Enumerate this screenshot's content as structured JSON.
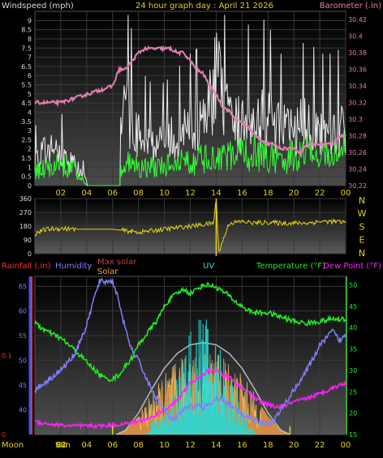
{
  "header": {
    "windspeed_label": "Windspeed (mph)",
    "title": "24 hour graph day : April 21 2026",
    "barometer_label": "Barometer (.in)"
  },
  "wind_panel": {
    "left_ticks": [
      "0",
      "0.5",
      "1",
      "1.5",
      "2",
      "2.5",
      "3",
      "3.5",
      "4",
      "4.5",
      "5",
      "5.5",
      "6",
      "6.5",
      "7",
      "7.5",
      "8",
      "8.5",
      "9"
    ],
    "right_ticks": [
      "30.22",
      "30.24",
      "30.26",
      "30.28",
      "30.3",
      "30.32",
      "30.34",
      "30.36",
      "30.38",
      "30.4",
      "30.42"
    ],
    "x_ticks": [
      "02",
      "04",
      "06",
      "08",
      "10",
      "12",
      "14",
      "16",
      "18",
      "20",
      "22",
      "00"
    ]
  },
  "direction_panel": {
    "left_ticks": [
      "360",
      "270",
      "180",
      "90",
      "0"
    ],
    "compass": [
      "N",
      "W",
      "S",
      "E",
      "N"
    ]
  },
  "bottom_panel": {
    "labels": {
      "rainfall": "Rainfall (.in)",
      "humidity": "Humidity",
      "max_solar": "Max solar",
      "solar": "Solar",
      "uv": "UV",
      "temperature": "Temperature (°F)",
      "dewpoint": "Dew Point (°F)"
    },
    "left_ticks": [
      "0",
      "0.1"
    ],
    "humidity_ticks": [
      "40",
      "45",
      "50",
      "55",
      "60",
      "65"
    ],
    "right_ticks": [
      "15",
      "20",
      "25",
      "30",
      "35",
      "40",
      "45",
      "50"
    ],
    "x_ticks": [
      "02",
      "04",
      "06",
      "08",
      "10",
      "12",
      "14",
      "16",
      "18",
      "20",
      "22",
      "00"
    ],
    "moon_label": "Moon",
    "moon_times": [
      "Sun",
      "00"
    ]
  },
  "colors": {
    "windspeed": "#e8e8e8",
    "gust": "#ffffff",
    "wind_avg": "#33ff33",
    "barometer": "#e080b0",
    "direction": "#e6d21a",
    "humidity": "#8080ff",
    "temperature": "#22ee22",
    "dewpoint": "#ff22ff",
    "uv": "#22dddd",
    "solar": "#ffa040",
    "max_solar": "#bbbbbb"
  },
  "chart_data": [
    {
      "type": "line",
      "x_range_hours": [
        0,
        24
      ],
      "ylim_left": [
        0,
        9.5
      ],
      "ylim_right": [
        30.22,
        30.43
      ],
      "series": [
        {
          "axis": "right",
          "x": [
            0.2,
            1,
            2,
            3,
            4,
            5,
            6,
            6.5,
            7,
            7.5,
            8,
            8.5,
            9,
            9.5,
            10,
            10.5,
            11,
            11.5,
            12,
            12.5,
            13,
            13.5,
            14,
            14.5,
            15,
            15.5,
            16,
            16.5,
            17,
            17.5,
            18,
            18.5,
            19,
            19.5,
            20,
            20.5,
            21,
            21.5,
            22,
            22.5,
            23,
            23.5,
            24
          ],
          "y": [
            30.32,
            30.32,
            30.32,
            30.325,
            30.33,
            30.335,
            30.34,
            30.36,
            30.36,
            30.37,
            30.38,
            30.385,
            30.385,
            30.385,
            30.385,
            30.385,
            30.38,
            30.38,
            30.37,
            30.36,
            30.355,
            30.34,
            30.33,
            30.315,
            30.31,
            30.3,
            30.295,
            30.29,
            30.28,
            30.275,
            30.27,
            30.27,
            30.265,
            30.265,
            30.265,
            30.26,
            30.27,
            30.27,
            30.27,
            30.27,
            30.27,
            30.28,
            30.28
          ]
        },
        {
          "x": [
            0,
            1,
            2,
            3,
            4,
            5,
            6,
            7,
            8,
            9,
            10,
            11,
            12,
            13,
            14,
            15,
            16,
            17,
            18,
            19,
            20,
            21,
            22,
            23,
            24
          ],
          "y": [
            1,
            1.3,
            1.5,
            1.2,
            0,
            0,
            0,
            1.6,
            1.5,
            1.3,
            1.5,
            1.6,
            1.8,
            1.9,
            1.8,
            2.1,
            2.2,
            2.4,
            2.1,
            2,
            2.1,
            2.5,
            2.2,
            2.2,
            2.6
          ]
        },
        {
          "x": [
            0,
            1,
            2,
            3,
            4,
            5,
            6,
            7,
            8,
            9,
            10,
            11,
            12,
            13,
            14,
            15,
            16,
            17,
            18,
            19,
            20,
            21,
            22,
            23,
            24
          ],
          "y": [
            2,
            3,
            2.5,
            1.8,
            0.5,
            0,
            0,
            6.5,
            4,
            3.5,
            3.5,
            4,
            4.5,
            4.8,
            9,
            5,
            5,
            6,
            5.5,
            4.5,
            4.5,
            5,
            4.5,
            4.5,
            4.8
          ]
        }
      ]
    },
    {
      "type": "line",
      "x_range_hours": [
        0,
        24
      ],
      "ylim": [
        0,
        360
      ],
      "series": [
        {
          "x": [
            0,
            0.5,
            1,
            2,
            3,
            4,
            5,
            6,
            7,
            8,
            9,
            10,
            11,
            12,
            13,
            13.8,
            14,
            14.2,
            15,
            16,
            17,
            18,
            19,
            20,
            21,
            22,
            23,
            24
          ],
          "y": [
            130,
            150,
            160,
            165,
            160,
            160,
            160,
            160,
            150,
            140,
            150,
            160,
            170,
            180,
            190,
            200,
            360,
            10,
            200,
            210,
            200,
            205,
            200,
            200,
            200,
            210,
            210,
            205
          ]
        }
      ]
    },
    {
      "type": "line",
      "x_range_hours": [
        0,
        24
      ],
      "ylim_left": [
        0,
        0.2
      ],
      "ylim_humidity": [
        35,
        67
      ],
      "ylim_right": [
        15,
        52
      ],
      "series": [
        {
          "axis": "humidity",
          "x": [
            0,
            1,
            2,
            3,
            4,
            4.5,
            5,
            5.5,
            6,
            6.5,
            7,
            7.5,
            8,
            8.5,
            9,
            9.5,
            10,
            10.5,
            11,
            11.5,
            12,
            12.5,
            13,
            13.5,
            14,
            14.5,
            15,
            15.5,
            16,
            16.5,
            17,
            17.5,
            18,
            18.5,
            19,
            19.5,
            20,
            21,
            22,
            23,
            23.5,
            24
          ],
          "y": [
            44,
            46,
            48,
            51,
            57,
            62,
            66,
            66,
            66,
            62,
            56,
            52,
            50,
            47,
            44,
            42,
            40,
            38,
            38.5,
            40,
            40.5,
            41,
            40.5,
            41,
            42,
            42,
            41,
            40,
            39,
            38.5,
            38,
            37.5,
            37,
            38,
            40,
            42,
            44,
            48,
            53,
            56,
            54,
            55
          ]
        },
        {
          "axis": "right",
          "x": [
            0,
            1,
            2,
            3,
            4,
            5,
            5.5,
            6,
            6.5,
            7,
            7.5,
            8,
            8.5,
            9,
            9.5,
            10,
            10.5,
            11,
            11.5,
            12,
            12.5,
            13,
            13.5,
            14,
            14.5,
            15,
            15.5,
            16,
            16.5,
            17,
            17.5,
            18,
            18.5,
            19,
            19.5,
            20,
            21,
            22,
            23,
            24
          ],
          "y": [
            41,
            39,
            37.5,
            35,
            32,
            29,
            28,
            28,
            29,
            31,
            33,
            36,
            38,
            40,
            42,
            45,
            47,
            48,
            49,
            48,
            49,
            50,
            50,
            49.5,
            48.5,
            47.5,
            46,
            45,
            44,
            43.5,
            43.5,
            43.5,
            43,
            42.5,
            42,
            41.5,
            41,
            41.5,
            42,
            42
          ]
        },
        {
          "axis": "right",
          "x": [
            0,
            1,
            2,
            3,
            4,
            5,
            6,
            7,
            8,
            9,
            9.5,
            10,
            10.5,
            11,
            11.5,
            12,
            12.5,
            13,
            13.5,
            14,
            14.5,
            15,
            15.5,
            16,
            16.5,
            17,
            17.5,
            18,
            18.5,
            19,
            19.5,
            20,
            21,
            22,
            23,
            24
          ],
          "y": [
            18,
            17.5,
            17.2,
            17,
            17,
            17,
            17.2,
            17.5,
            18,
            19,
            20,
            20.5,
            22,
            23,
            25,
            27,
            28,
            29,
            30,
            30,
            29,
            28.5,
            27,
            26,
            25,
            23.5,
            22.5,
            22,
            21.5,
            21.5,
            22,
            22.5,
            23.5,
            24.5,
            26,
            27
          ]
        },
        {
          "axis": "right",
          "x": [
            0,
            8.6,
            9,
            10,
            11,
            12,
            12.5,
            13,
            13.5,
            14,
            15,
            16,
            17,
            17.5,
            24
          ],
          "y": [
            15,
            15,
            17,
            20,
            25,
            31,
            33,
            35,
            33,
            31,
            26,
            20,
            15,
            15,
            15
          ]
        },
        {
          "axis": "right",
          "x": [
            6.3,
            7,
            8,
            9,
            10,
            11,
            12,
            13,
            14,
            15,
            16,
            17,
            18,
            19,
            19.7
          ],
          "y": [
            15,
            16,
            20,
            25.5,
            30.5,
            34,
            36,
            36.5,
            36,
            34,
            30.5,
            25.5,
            20,
            16,
            15
          ]
        }
      ]
    }
  ]
}
